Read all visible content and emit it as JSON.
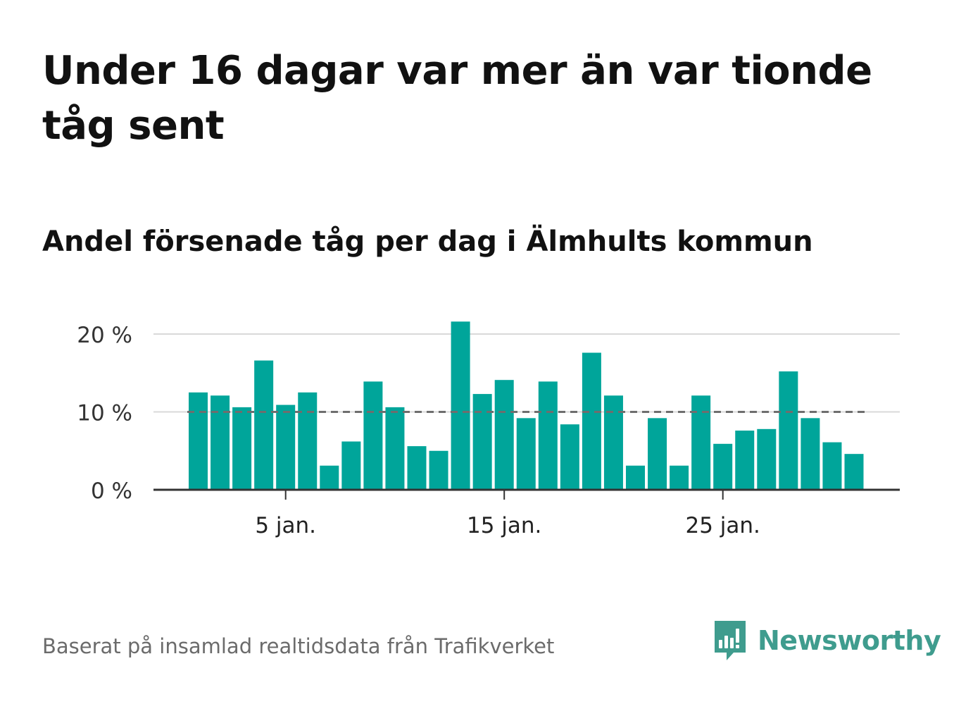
{
  "title": "Under 16 dagar var mer än var tionde tåg sent",
  "subtitle": "Andel försenade tåg per dag i Älmhults kommun",
  "footer": {
    "source": "Baserat på insamlad realtidsdata från Trafikverket",
    "brand": "Newsworthy"
  },
  "colors": {
    "bar": "#00a59a",
    "reference_line": "#6e6e6e",
    "grid": "#d9d9d9",
    "axis": "#333333",
    "brand": "#3f9c8e"
  },
  "icons": {
    "logo": "bar-chart-speech-bubble-icon"
  },
  "chart_data": {
    "type": "bar",
    "x": [
      1,
      2,
      3,
      4,
      5,
      6,
      7,
      8,
      9,
      10,
      11,
      12,
      13,
      14,
      15,
      16,
      17,
      18,
      19,
      20,
      21,
      22,
      23,
      24,
      25,
      26,
      27,
      28,
      29,
      30,
      31
    ],
    "values": [
      12.5,
      12.1,
      10.6,
      16.6,
      10.9,
      12.5,
      3.1,
      6.2,
      13.9,
      10.6,
      5.6,
      5.0,
      21.6,
      12.3,
      14.1,
      9.2,
      13.9,
      8.4,
      17.6,
      12.1,
      3.1,
      9.2,
      3.1,
      12.1,
      5.9,
      7.6,
      7.8,
      15.2,
      9.2,
      6.1,
      4.6
    ],
    "reference_line": {
      "value": 10,
      "style": "dashed"
    },
    "ylim": [
      0,
      22
    ],
    "yticks": [
      {
        "value": 0,
        "label": "0 %"
      },
      {
        "value": 10,
        "label": "10 %"
      },
      {
        "value": 20,
        "label": "20 %"
      }
    ],
    "xticks": [
      {
        "value": 5,
        "label": "5 jan."
      },
      {
        "value": 15,
        "label": "15 jan."
      },
      {
        "value": 25,
        "label": "25 jan."
      }
    ],
    "grid": true,
    "xlabel": "",
    "ylabel": ""
  }
}
